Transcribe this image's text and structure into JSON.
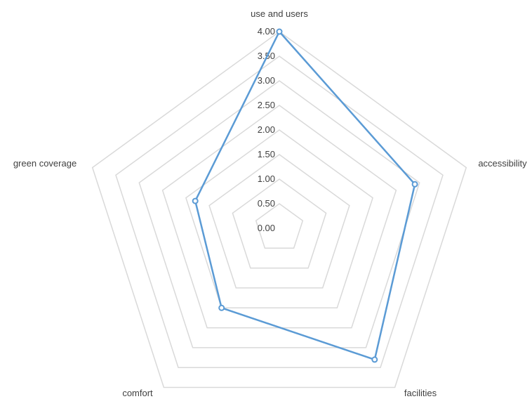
{
  "chart_data": {
    "type": "radar",
    "categories": [
      "use and users",
      "accessibility",
      "facilities",
      "comfort",
      "green coverage"
    ],
    "series": [
      {
        "values": [
          4.0,
          2.9,
          3.3,
          2.0,
          1.8
        ],
        "color": "#5b9bd5"
      }
    ],
    "r_range": [
      0,
      4
    ],
    "r_ticks": [
      "0.00",
      "0.50",
      "1.00",
      "1.50",
      "2.00",
      "2.50",
      "3.00",
      "3.50",
      "4.00"
    ],
    "grid": true,
    "grid_color": "#d9d9d9",
    "legend": "none"
  }
}
